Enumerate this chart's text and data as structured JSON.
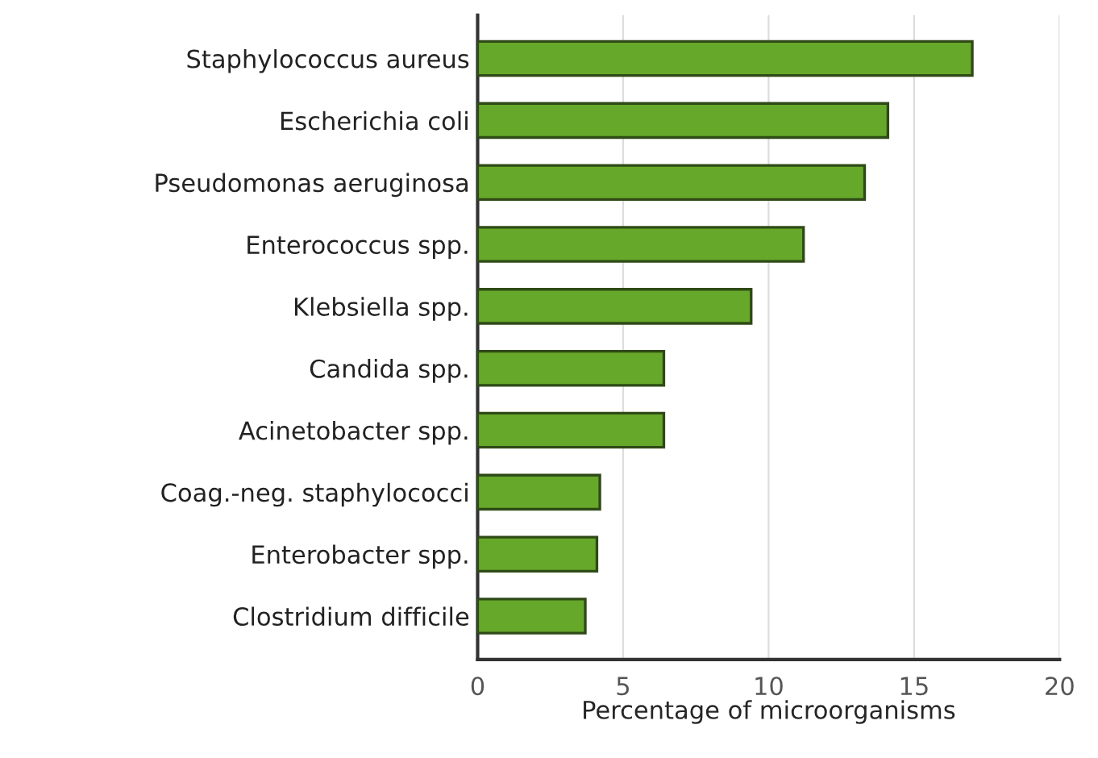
{
  "chart_data": {
    "type": "bar",
    "orientation": "horizontal",
    "xlabel": "Percentage of microorganisms",
    "categories": [
      "Staphylococcus aureus",
      "Escherichia coli",
      "Pseudomonas aeruginosa",
      "Enterococcus spp.",
      "Klebsiella spp.",
      "Candida spp.",
      "Acinetobacter spp.",
      "Coag.-neg. staphylococci",
      "Enterobacter spp.",
      "Clostridium difficile"
    ],
    "values": [
      17.0,
      14.1,
      13.3,
      11.2,
      9.4,
      6.4,
      6.4,
      4.2,
      4.1,
      3.7
    ],
    "color": "#66a82a",
    "xlim": [
      0,
      20
    ],
    "xticks": [
      0,
      5,
      10,
      15,
      20
    ],
    "grid": "x"
  }
}
